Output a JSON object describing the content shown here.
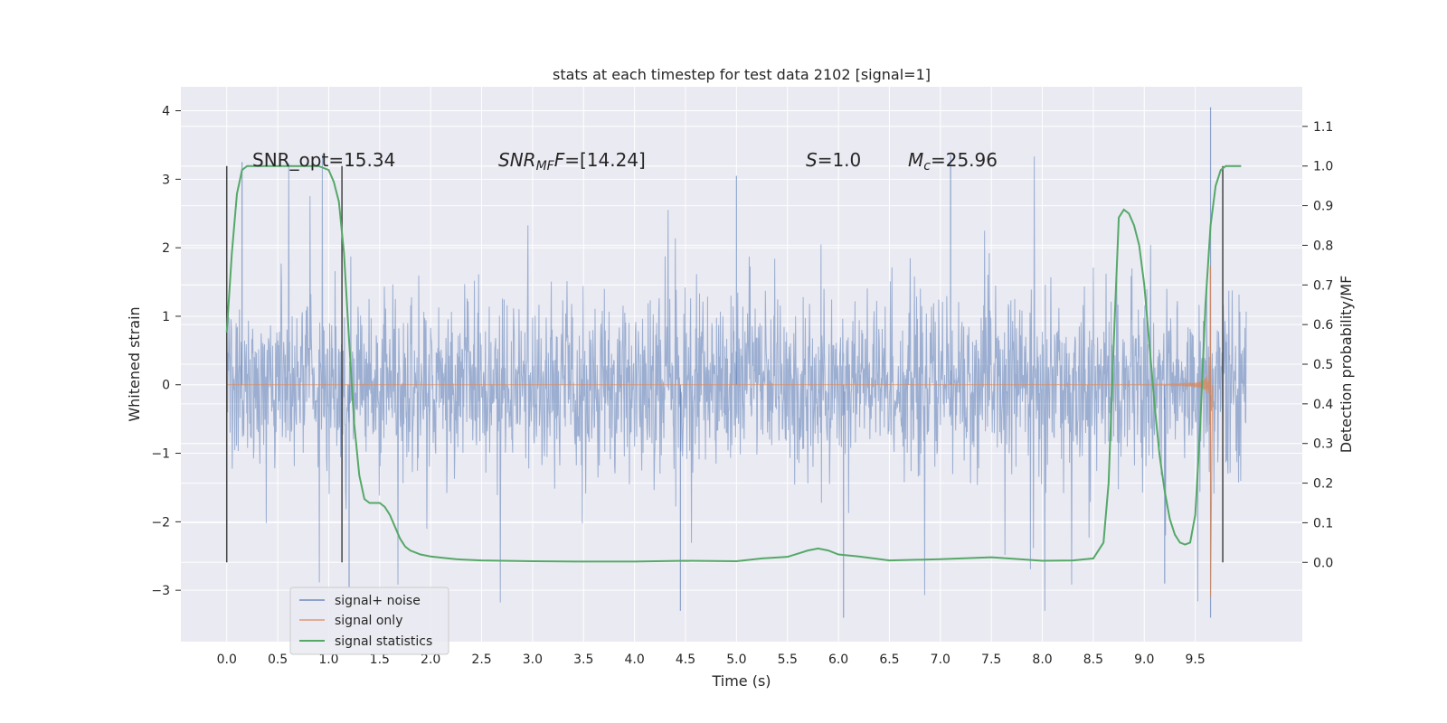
{
  "chart_data": {
    "type": "line",
    "title": "stats at each timestep for test data 2102 [signal=1]",
    "xlabel": "Time (s)",
    "ylabel_left": "Whitened strain",
    "ylabel_right": "Detection probability/MF",
    "xlim": [
      -0.45,
      10.55
    ],
    "ylim_left": [
      -3.75,
      4.35
    ],
    "ylim_right": [
      -0.2,
      1.2
    ],
    "x_ticks": [
      "0.0",
      "0.5",
      "1.0",
      "1.5",
      "2.0",
      "2.5",
      "3.0",
      "3.5",
      "4.0",
      "4.5",
      "5.0",
      "5.5",
      "6.0",
      "6.5",
      "7.0",
      "7.5",
      "8.0",
      "8.5",
      "9.0",
      "9.5"
    ],
    "y_ticks_left": [
      "−3",
      "−2",
      "−1",
      "0",
      "1",
      "2",
      "3",
      "4"
    ],
    "y_ticks_right": [
      "0.0",
      "0.1",
      "0.2",
      "0.3",
      "0.4",
      "0.5",
      "0.6",
      "0.7",
      "0.8",
      "0.9",
      "1.0",
      "1.1"
    ],
    "annotations": {
      "snr_opt": "SNR_opt=15.34",
      "snr_mf_main": "SNR",
      "snr_mf_sub": "MF",
      "snr_mf_rest": "=[14.24]",
      "s_main": "S",
      "s_rest": "=1.0",
      "mc_main": "M",
      "mc_sub": "c",
      "mc_rest": "=25.96"
    },
    "legend": {
      "position": "lower-left",
      "items": [
        "signal+ noise",
        "signal only",
        "signal statistics"
      ]
    },
    "colors": {
      "background": "#eaeaf2",
      "grid": "#ffffff",
      "noise": "#4c72b0",
      "signal": "#dd8452",
      "stats": "#55a868",
      "vline": "#444444"
    },
    "series": [
      {
        "name": "signal+ noise",
        "axis": "left",
        "t_range": [
          0.0,
          10.0
        ],
        "band": [
          -1.35,
          1.35
        ],
        "peak_extremes": [
          4.05,
          -3.4
        ]
      },
      {
        "name": "signal only",
        "axis": "left",
        "merger_time": 9.65,
        "peak_amplitude": 2.85
      },
      {
        "name": "signal statistics",
        "axis": "right",
        "x": [
          0.0,
          0.05,
          0.1,
          0.15,
          0.2,
          0.3,
          0.4,
          0.5,
          0.6,
          0.7,
          0.8,
          0.9,
          1.0,
          1.05,
          1.1,
          1.15,
          1.2,
          1.25,
          1.3,
          1.35,
          1.4,
          1.45,
          1.5,
          1.55,
          1.6,
          1.65,
          1.7,
          1.75,
          1.8,
          1.85,
          1.9,
          2.0,
          2.1,
          2.25,
          2.5,
          3.0,
          3.5,
          4.0,
          4.5,
          5.0,
          5.25,
          5.5,
          5.7,
          5.8,
          5.9,
          6.0,
          6.2,
          6.5,
          7.0,
          7.5,
          8.0,
          8.3,
          8.5,
          8.6,
          8.65,
          8.7,
          8.75,
          8.8,
          8.85,
          8.9,
          8.95,
          9.0,
          9.05,
          9.1,
          9.15,
          9.2,
          9.25,
          9.3,
          9.35,
          9.4,
          9.45,
          9.5,
          9.55,
          9.6,
          9.65,
          9.7,
          9.75,
          9.8,
          9.85,
          9.9,
          9.95
        ],
        "values": [
          0.58,
          0.78,
          0.93,
          0.99,
          1.0,
          1.0,
          1.0,
          1.0,
          1.0,
          1.0,
          1.0,
          1.0,
          0.99,
          0.96,
          0.91,
          0.78,
          0.56,
          0.35,
          0.22,
          0.16,
          0.15,
          0.15,
          0.15,
          0.14,
          0.12,
          0.09,
          0.06,
          0.04,
          0.03,
          0.025,
          0.02,
          0.015,
          0.012,
          0.008,
          0.005,
          0.003,
          0.002,
          0.002,
          0.004,
          0.003,
          0.01,
          0.014,
          0.03,
          0.035,
          0.03,
          0.02,
          0.015,
          0.005,
          0.008,
          0.013,
          0.004,
          0.005,
          0.01,
          0.05,
          0.2,
          0.55,
          0.87,
          0.89,
          0.88,
          0.85,
          0.8,
          0.7,
          0.55,
          0.4,
          0.27,
          0.18,
          0.11,
          0.07,
          0.05,
          0.045,
          0.05,
          0.12,
          0.35,
          0.65,
          0.85,
          0.95,
          0.99,
          1.0,
          1.0,
          1.0,
          1.0
        ]
      }
    ],
    "vertical_markers_x": [
      0.0,
      1.13,
      9.77
    ]
  }
}
